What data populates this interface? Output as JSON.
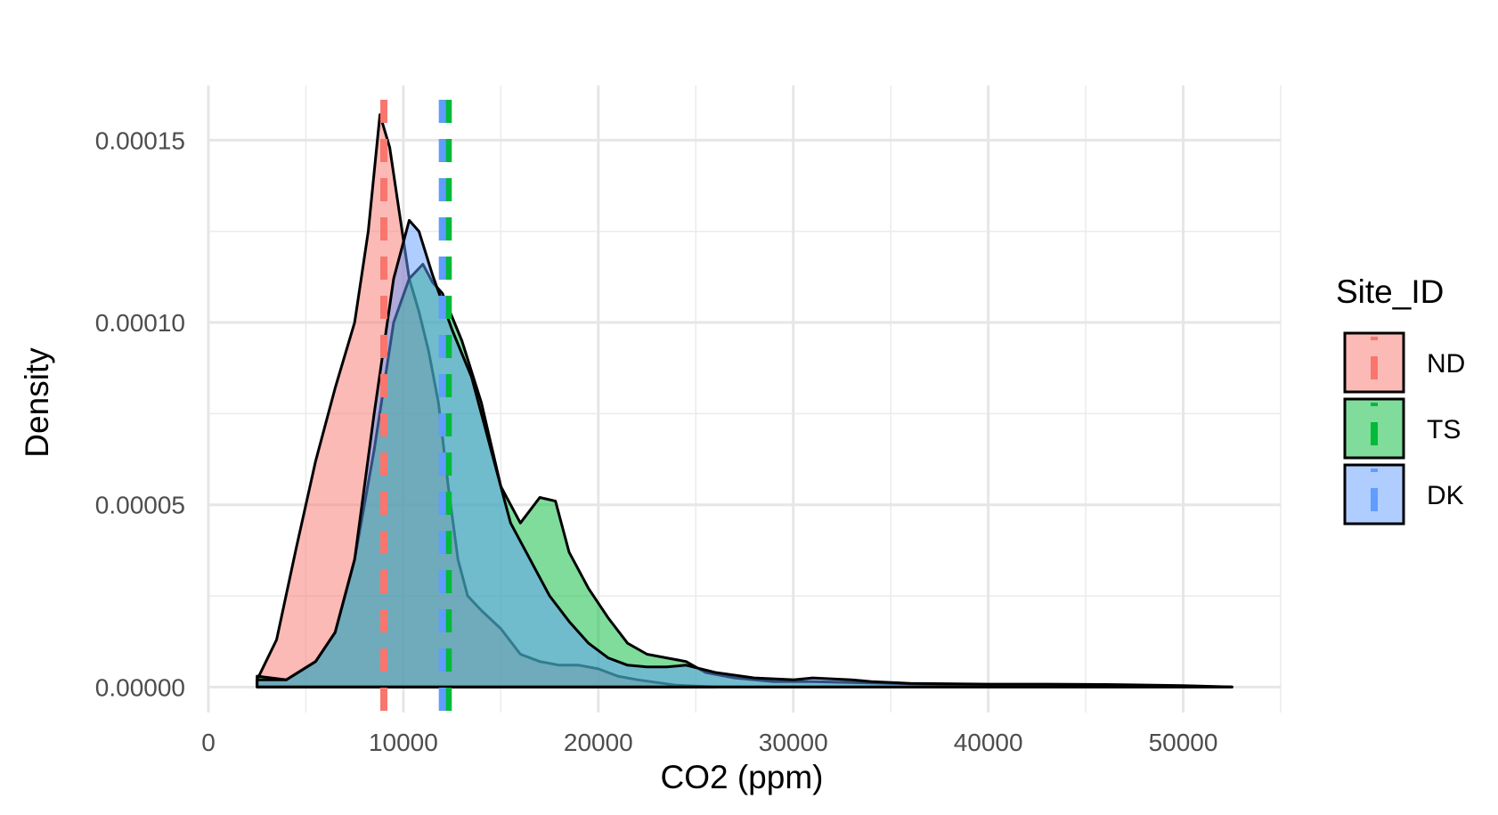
{
  "chart_data": {
    "type": "area",
    "title": "",
    "xlabel": "CO2 (ppm)",
    "ylabel": "Density",
    "xlim": [
      0,
      55000
    ],
    "ylim": [
      -7e-06,
      0.000165
    ],
    "x_ticks": [
      0,
      10000,
      20000,
      30000,
      40000,
      50000
    ],
    "x_tick_labels": [
      "0",
      "10000",
      "20000",
      "30000",
      "40000",
      "50000"
    ],
    "y_ticks": [
      0,
      5e-05,
      0.0001,
      0.00015
    ],
    "y_tick_labels": [
      "0.00000",
      "0.00005",
      "0.00010",
      "0.00015"
    ],
    "grid": true,
    "legend": {
      "title": "Site_ID",
      "position": "right",
      "entries": [
        "ND",
        "TS",
        "DK"
      ]
    },
    "series": [
      {
        "name": "ND",
        "fill": "#F8766D",
        "line": "#F8766D",
        "mean": 9000,
        "x": [
          2500,
          3500,
          4500,
          5500,
          6500,
          7500,
          8200,
          8800,
          9300,
          9800,
          10300,
          10800,
          11300,
          11800,
          12300,
          12800,
          13300,
          14000,
          15000,
          16000,
          17000,
          18000,
          19000,
          20000,
          21000,
          22000,
          24000,
          26000
        ],
        "y": [
          2e-06,
          1.3e-05,
          3.8e-05,
          6.2e-05,
          8.2e-05,
          0.0001,
          0.000125,
          0.000157,
          0.000148,
          0.00013,
          0.000112,
          0.000103,
          9.2e-05,
          7.8e-05,
          5.5e-05,
          3.5e-05,
          2.5e-05,
          2.1e-05,
          1.6e-05,
          9e-06,
          7e-06,
          6e-06,
          6e-06,
          5e-06,
          3e-06,
          2e-06,
          5e-07,
          0
        ]
      },
      {
        "name": "TS",
        "fill": "#00BA38",
        "line": "#00BA38",
        "mean": 12300,
        "x": [
          2500,
          4000,
          5500,
          6500,
          7500,
          8500,
          9500,
          10300,
          11000,
          11500,
          12000,
          13000,
          14000,
          15000,
          16000,
          17000,
          17800,
          18500,
          19500,
          20500,
          21500,
          22500,
          23500,
          24500,
          25500,
          27000,
          29000,
          31000,
          35000,
          40000,
          45000,
          50000,
          52500
        ],
        "y": [
          3e-06,
          2e-06,
          7e-06,
          1.5e-05,
          3.5e-05,
          6.5e-05,
          0.0001,
          0.000112,
          0.000116,
          0.000111,
          0.000108,
          9.5e-05,
          7.8e-05,
          5.5e-05,
          4.5e-05,
          5.2e-05,
          5.1e-05,
          3.7e-05,
          2.7e-05,
          1.9e-05,
          1.2e-05,
          9e-06,
          8e-06,
          7e-06,
          4e-06,
          2.5e-06,
          1.5e-06,
          1.5e-06,
          1e-06,
          5e-07,
          3e-07,
          2e-07,
          0
        ]
      },
      {
        "name": "DK",
        "fill": "#619CFF",
        "line": "#619CFF",
        "mean": 12000,
        "x": [
          2500,
          4000,
          5500,
          6500,
          7500,
          8500,
          9500,
          10300,
          10800,
          11500,
          12500,
          13500,
          14500,
          15500,
          16500,
          17500,
          18500,
          19500,
          20500,
          21500,
          22500,
          23500,
          24500,
          26000,
          28000,
          30000,
          31000,
          33000,
          34000,
          36000,
          40000,
          43000,
          46000,
          50000,
          52500
        ],
        "y": [
          2e-06,
          2e-06,
          7e-06,
          1.5e-05,
          3.5e-05,
          7.5e-05,
          0.000112,
          0.000128,
          0.000125,
          0.000113,
          9.8e-05,
          8.5e-05,
          6.5e-05,
          4.5e-05,
          3.5e-05,
          2.5e-05,
          1.8e-05,
          1.2e-05,
          8e-06,
          6e-06,
          5.5e-06,
          5.5e-06,
          6e-06,
          4e-06,
          2.5e-06,
          2e-06,
          2.5e-06,
          2e-06,
          1.5e-06,
          1e-06,
          8e-07,
          8e-07,
          7e-07,
          4e-07,
          0
        ]
      }
    ]
  }
}
